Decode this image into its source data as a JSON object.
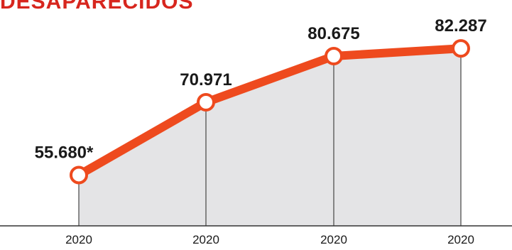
{
  "chart_data": {
    "type": "area",
    "title": "DESAPARECIDOS",
    "categories": [
      "2020",
      "2020",
      "2020",
      "2020"
    ],
    "values": [
      55680,
      70971,
      80675,
      82287
    ],
    "data_labels": [
      "55.680*",
      "70.971",
      "80.675",
      "82.287"
    ],
    "xlabel": "",
    "ylabel": "",
    "ylim": [
      45000,
      85000
    ],
    "grid": false,
    "legend": "none",
    "colors": {
      "title": "#d7261e",
      "line": "#ee4a1e",
      "marker_fill": "#ffffff",
      "area": "#e4e4e6",
      "drop_lines": "#444444",
      "axis": "#333333",
      "text": "#1a1a1a"
    }
  }
}
